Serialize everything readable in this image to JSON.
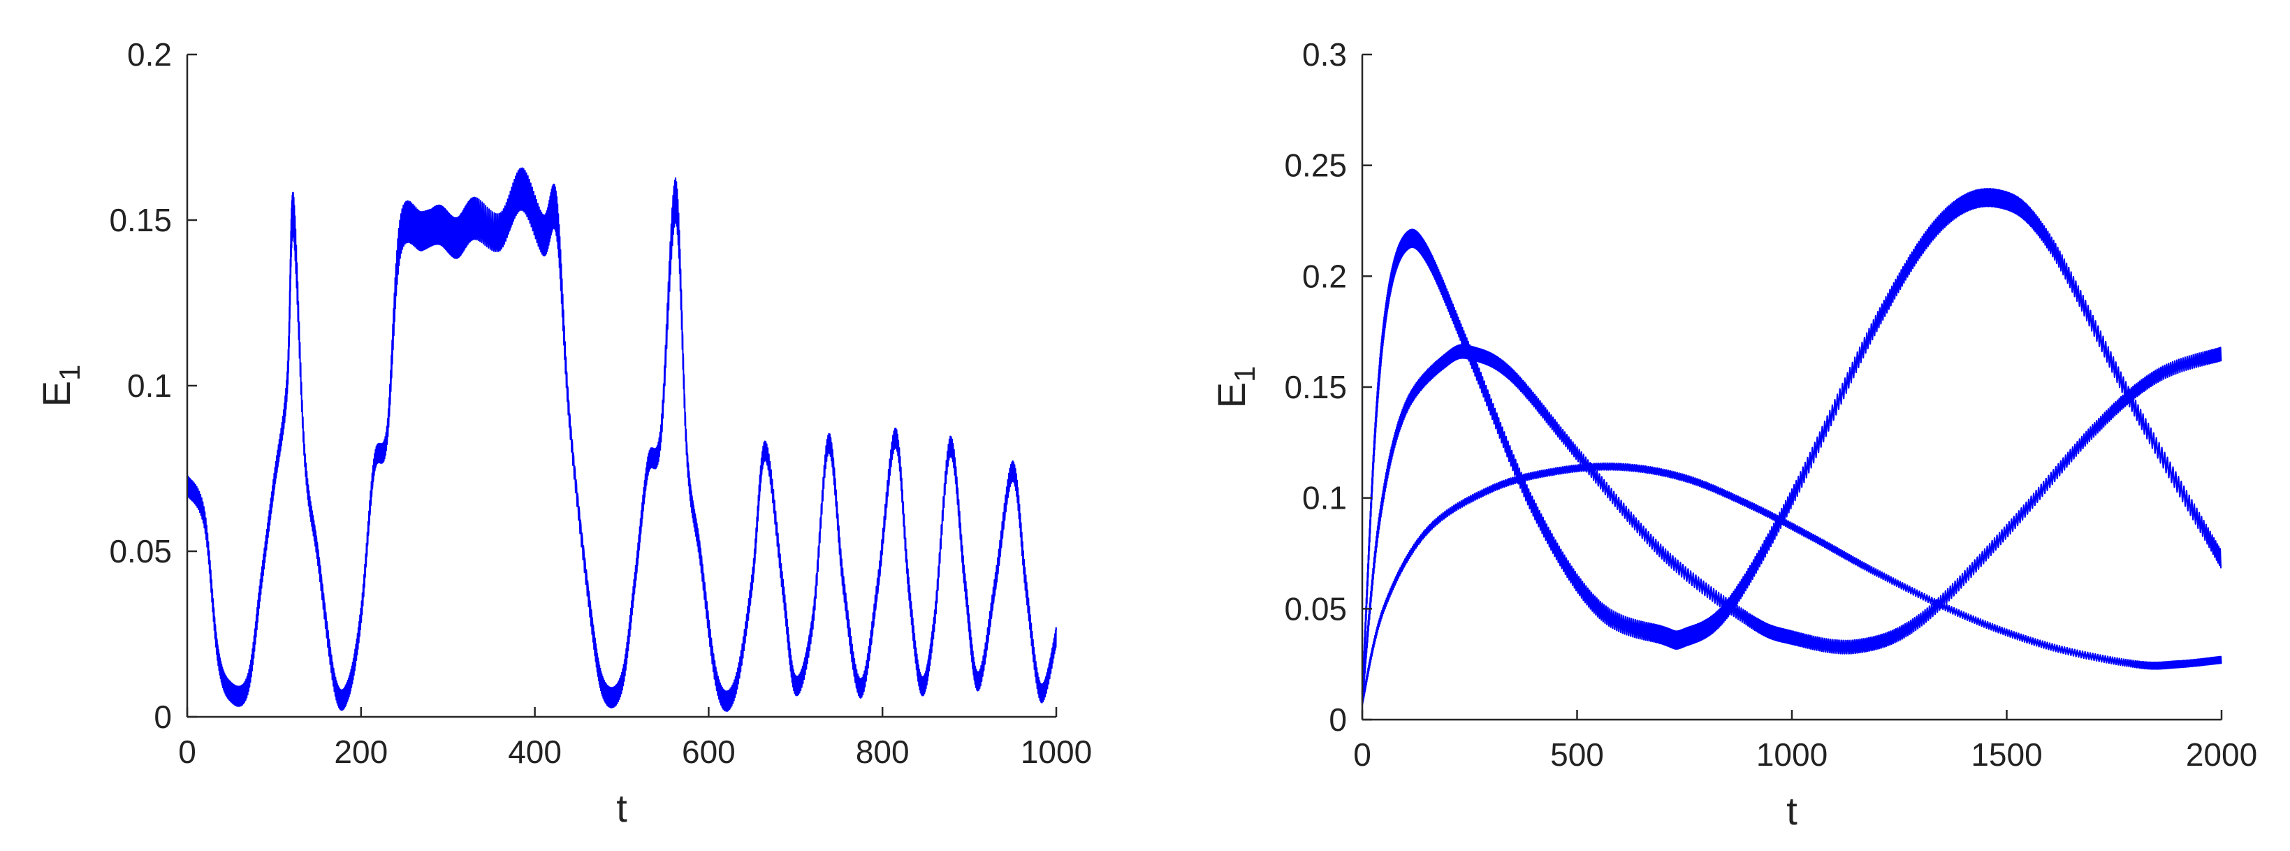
{
  "chart_data": [
    {
      "type": "line",
      "title": "",
      "xlabel": "t",
      "ylabel": "E",
      "ylabel_subscript": "1",
      "xlim": [
        0,
        1000
      ],
      "ylim": [
        0,
        0.2
      ],
      "xticks": [
        0,
        200,
        400,
        600,
        800,
        1000
      ],
      "yticks": [
        0,
        0.05,
        0.1,
        0.15,
        0.2
      ],
      "xtick_labels": [
        "0",
        "200",
        "400",
        "600",
        "800",
        "1000"
      ],
      "ytick_labels": [
        "0",
        "0.05",
        "0.1",
        "0.15",
        "0.2"
      ],
      "grid": false,
      "color": "#0000ff",
      "series": [
        {
          "x": [
            0,
            20,
            35,
            50,
            70,
            85,
            100,
            115,
            122,
            135,
            150,
            170,
            185,
            200,
            215,
            230,
            245,
            270,
            290,
            310,
            330,
            360,
            385,
            410,
            425,
            440,
            465,
            480,
            500,
            515,
            530,
            545,
            562,
            575,
            590,
            610,
            630,
            650,
            665,
            685,
            700,
            720,
            738,
            755,
            775,
            795,
            815,
            830,
            845,
            860,
            878,
            895,
            910,
            930,
            950,
            965,
            982,
            1000
          ],
          "y": [
            0.07,
            0.06,
            0.02,
            0.008,
            0.01,
            0.04,
            0.07,
            0.1,
            0.152,
            0.08,
            0.05,
            0.01,
            0.008,
            0.03,
            0.075,
            0.085,
            0.145,
            0.148,
            0.15,
            0.145,
            0.15,
            0.145,
            0.158,
            0.145,
            0.152,
            0.09,
            0.03,
            0.008,
            0.01,
            0.04,
            0.075,
            0.085,
            0.157,
            0.08,
            0.05,
            0.01,
            0.008,
            0.04,
            0.08,
            0.04,
            0.01,
            0.03,
            0.083,
            0.04,
            0.008,
            0.04,
            0.084,
            0.04,
            0.01,
            0.03,
            0.082,
            0.04,
            0.01,
            0.04,
            0.074,
            0.04,
            0.008,
            0.025
          ]
        }
      ]
    },
    {
      "type": "line",
      "title": "",
      "xlabel": "t",
      "ylabel": "E",
      "ylabel_subscript": "1",
      "xlim": [
        0,
        2000
      ],
      "ylim": [
        0,
        0.3
      ],
      "xticks": [
        0,
        500,
        1000,
        1500,
        2000
      ],
      "yticks": [
        0,
        0.05,
        0.1,
        0.15,
        0.2,
        0.25,
        0.3
      ],
      "xtick_labels": [
        "0",
        "500",
        "1000",
        "1500",
        "2000"
      ],
      "ytick_labels": [
        "0",
        "0.05",
        "0.1",
        "0.15",
        "0.2",
        "0.25",
        "0.3"
      ],
      "grid": false,
      "color": "#0000ff",
      "series": [
        {
          "band": 0.008,
          "x": [
            0,
            30,
            60,
            100,
            150,
            250,
            400,
            550,
            700,
            750,
            850,
            1000,
            1200,
            1350,
            1480,
            1600,
            1800,
            2000
          ],
          "y": [
            0.01,
            0.13,
            0.19,
            0.215,
            0.21,
            0.165,
            0.095,
            0.05,
            0.038,
            0.037,
            0.05,
            0.1,
            0.18,
            0.225,
            0.235,
            0.215,
            0.14,
            0.072
          ]
        },
        {
          "band": 0.006,
          "x": [
            0,
            40,
            100,
            200,
            260,
            350,
            500,
            700,
            900,
            1000,
            1150,
            1300,
            1500,
            1700,
            1850,
            2000
          ],
          "y": [
            0.01,
            0.09,
            0.14,
            0.163,
            0.165,
            0.155,
            0.12,
            0.075,
            0.045,
            0.037,
            0.033,
            0.045,
            0.085,
            0.13,
            0.155,
            0.165
          ]
        },
        {
          "band": 0.003,
          "x": [
            0,
            50,
            150,
            300,
            450,
            600,
            750,
            900,
            1050,
            1200,
            1400,
            1600,
            1800,
            1900,
            2000
          ],
          "y": [
            0.008,
            0.05,
            0.085,
            0.104,
            0.112,
            0.114,
            0.109,
            0.097,
            0.082,
            0.066,
            0.047,
            0.033,
            0.025,
            0.025,
            0.027
          ]
        }
      ]
    }
  ]
}
